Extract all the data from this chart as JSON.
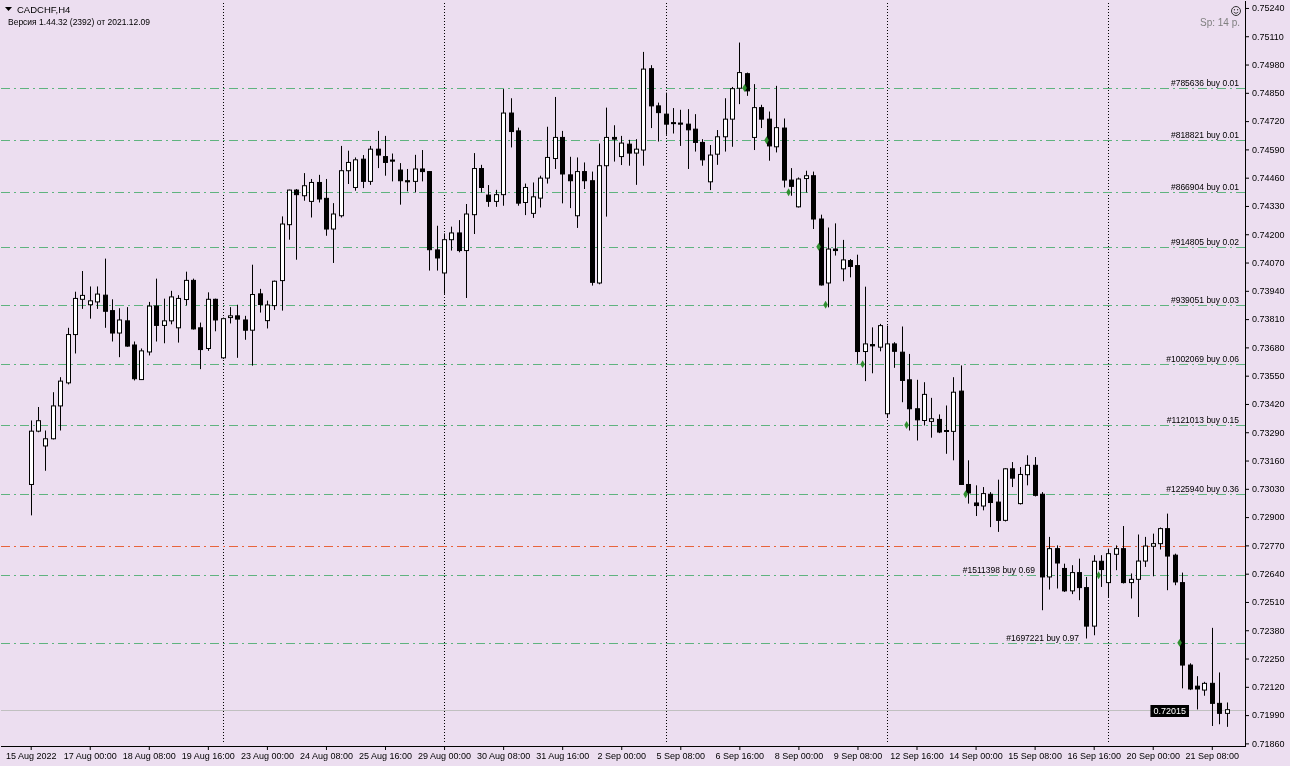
{
  "chart_data": {
    "type": "candlestick",
    "title": "CADCHF,H4",
    "subtitle": "Версия 1.44.32 (2392) от 2021.12.09",
    "annotations": [
      "Sp: 14 p."
    ],
    "categories": [
      "15 Aug 2022",
      null,
      null,
      null,
      null,
      null,
      null,
      null,
      "17 Aug 00:00",
      null,
      null,
      null,
      null,
      null,
      null,
      null,
      "18 Aug 08:00",
      null,
      null,
      null,
      null,
      null,
      null,
      null,
      "19 Aug 16:00",
      null,
      null,
      null,
      null,
      null,
      null,
      null,
      "23 Aug 00:00",
      null,
      null,
      null,
      null,
      null,
      null,
      null,
      "24 Aug 08:00",
      null,
      null,
      null,
      null,
      null,
      null,
      null,
      "25 Aug 16:00",
      null,
      null,
      null,
      null,
      null,
      null,
      null,
      "29 Aug 00:00",
      null,
      null,
      null,
      null,
      null,
      null,
      null,
      "30 Aug 08:00",
      null,
      null,
      null,
      null,
      null,
      null,
      null,
      "31 Aug 16:00",
      null,
      null,
      null,
      null,
      null,
      null,
      null,
      "2 Sep 00:00",
      null,
      null,
      null,
      null,
      null,
      null,
      null,
      "5 Sep 08:00",
      null,
      null,
      null,
      null,
      null,
      null,
      null,
      "6 Sep 16:00",
      null,
      null,
      null,
      null,
      null,
      null,
      null,
      "8 Sep 00:00",
      null,
      null,
      null,
      null,
      null,
      null,
      null,
      "9 Sep 08:00",
      null,
      null,
      null,
      null,
      null,
      null,
      null,
      "12 Sep 16:00",
      null,
      null,
      null,
      null,
      null,
      null,
      null,
      "14 Sep 00:00",
      null,
      null,
      null,
      null,
      null,
      null,
      null,
      "15 Sep 08:00",
      null,
      null,
      null,
      null,
      null,
      null,
      null,
      "16 Sep 16:00",
      null,
      null,
      null,
      null,
      null,
      null,
      null,
      "20 Sep 00:00",
      null,
      null,
      null,
      null,
      null,
      null,
      null,
      "21 Sep 08:00",
      null,
      null
    ],
    "ohlc": [
      [
        0.7305,
        0.73344,
        0.72908,
        0.73295
      ],
      [
        0.73295,
        0.73406,
        0.7329,
        0.73343
      ],
      [
        0.73227,
        0.73298,
        0.73113,
        0.7326
      ],
      [
        0.7326,
        0.73474,
        0.73257,
        0.73411
      ],
      [
        0.73411,
        0.73543,
        0.73298,
        0.73525
      ],
      [
        0.73517,
        0.7377,
        0.7351,
        0.73739
      ],
      [
        0.73739,
        0.73936,
        0.73652,
        0.73905
      ],
      [
        0.73901,
        0.74031,
        0.73857,
        0.73919
      ],
      [
        0.73876,
        0.7396,
        0.73812,
        0.73894
      ],
      [
        0.73889,
        0.7396,
        0.73857,
        0.73925
      ],
      [
        0.7392,
        0.74088,
        0.7377,
        0.73846
      ],
      [
        0.73849,
        0.73901,
        0.73707,
        0.73746
      ],
      [
        0.73746,
        0.7386,
        0.73635,
        0.73806
      ],
      [
        0.73802,
        0.73865,
        0.73683,
        0.73686
      ],
      [
        0.73691,
        0.73707,
        0.73528,
        0.73536
      ],
      [
        0.73532,
        0.73675,
        0.7353,
        0.73664
      ],
      [
        0.73659,
        0.73889,
        0.73643,
        0.7387
      ],
      [
        0.7387,
        0.73996,
        0.73707,
        0.73781
      ],
      [
        0.73781,
        0.73904,
        0.73699,
        0.73802
      ],
      [
        0.73802,
        0.7394,
        0.73786,
        0.73912
      ],
      [
        0.7377,
        0.7392,
        0.73702,
        0.73905
      ],
      [
        0.739,
        0.74028,
        0.73873,
        0.73988
      ],
      [
        0.73988,
        0.73996,
        0.73762,
        0.73765
      ],
      [
        0.7377,
        0.73794,
        0.7358,
        0.7367
      ],
      [
        0.73675,
        0.73933,
        0.73664,
        0.73901
      ],
      [
        0.73901,
        0.73904,
        0.73754,
        0.73806
      ],
      [
        0.73632,
        0.73817,
        0.73627,
        0.73812
      ],
      [
        0.73817,
        0.73865,
        0.7379,
        0.73825
      ],
      [
        0.73825,
        0.73876,
        0.73632,
        0.7381
      ],
      [
        0.73806,
        0.73825,
        0.73715,
        0.73759
      ],
      [
        0.73759,
        0.7406,
        0.73596,
        0.73923
      ],
      [
        0.73926,
        0.73949,
        0.7384,
        0.73877
      ],
      [
        0.73803,
        0.73895,
        0.73767,
        0.73875
      ],
      [
        0.73872,
        0.73987,
        0.73852,
        0.73984
      ],
      [
        0.73987,
        0.74282,
        0.73849,
        0.74247
      ],
      [
        0.74244,
        0.74405,
        0.74175,
        0.74403
      ],
      [
        0.74403,
        0.74408,
        0.74083,
        0.74382
      ],
      [
        0.74377,
        0.74481,
        0.74354,
        0.74423
      ],
      [
        0.74351,
        0.74454,
        0.74277,
        0.74438
      ],
      [
        0.74438,
        0.74473,
        0.74346,
        0.74362
      ],
      [
        0.74365,
        0.74454,
        0.74193,
        0.74224
      ],
      [
        0.74224,
        0.74343,
        0.74068,
        0.74293
      ],
      [
        0.74285,
        0.74606,
        0.74277,
        0.74492
      ],
      [
        0.74492,
        0.74584,
        0.74431,
        0.7453
      ],
      [
        0.74415,
        0.74553,
        0.744,
        0.74542
      ],
      [
        0.74545,
        0.74564,
        0.74412,
        0.74443
      ],
      [
        0.74443,
        0.74606,
        0.74427,
        0.74591
      ],
      [
        0.74591,
        0.74675,
        0.74504,
        0.74564
      ],
      [
        0.74557,
        0.74652,
        0.74469,
        0.7453
      ],
      [
        0.74541,
        0.74571,
        0.74443,
        0.74536
      ],
      [
        0.74495,
        0.74527,
        0.74336,
        0.74446
      ],
      [
        0.74446,
        0.745,
        0.74397,
        0.74441
      ],
      [
        0.74443,
        0.74565,
        0.74392,
        0.745
      ],
      [
        0.745,
        0.74587,
        0.74443,
        0.74488
      ],
      [
        0.74488,
        0.7449,
        0.74033,
        0.74129
      ],
      [
        0.74128,
        0.74239,
        0.74033,
        0.74091
      ],
      [
        0.74022,
        0.74204,
        0.73926,
        0.74175
      ],
      [
        0.74175,
        0.74235,
        0.74125,
        0.74206
      ],
      [
        0.74206,
        0.74265,
        0.74117,
        0.74125
      ],
      [
        0.74125,
        0.74339,
        0.73907,
        0.74293
      ],
      [
        0.7429,
        0.74573,
        0.74201,
        0.74502
      ],
      [
        0.74502,
        0.74519,
        0.74392,
        0.74415
      ],
      [
        0.7438,
        0.74426,
        0.74326,
        0.74351
      ],
      [
        0.74351,
        0.74404,
        0.74326,
        0.74382
      ],
      [
        0.74382,
        0.74867,
        0.74331,
        0.74757
      ],
      [
        0.74757,
        0.74825,
        0.74599,
        0.74672
      ],
      [
        0.74675,
        0.7469,
        0.74331,
        0.74343
      ],
      [
        0.74346,
        0.74433,
        0.74288,
        0.74415
      ],
      [
        0.74296,
        0.74438,
        0.74275,
        0.74372
      ],
      [
        0.74366,
        0.74469,
        0.74323,
        0.74458
      ],
      [
        0.74458,
        0.74694,
        0.74433,
        0.74553
      ],
      [
        0.74548,
        0.74831,
        0.745,
        0.74645
      ],
      [
        0.74645,
        0.74675,
        0.74342,
        0.74477
      ],
      [
        0.74473,
        0.74556,
        0.7432,
        0.74446
      ],
      [
        0.74285,
        0.74553,
        0.74229,
        0.74488
      ],
      [
        0.74488,
        0.7453,
        0.74408,
        0.74446
      ],
      [
        0.74446,
        0.74488,
        0.73964,
        0.73979
      ],
      [
        0.73976,
        0.74617,
        0.7397,
        0.74515
      ],
      [
        0.74515,
        0.74782,
        0.74281,
        0.74645
      ],
      [
        0.74645,
        0.74701,
        0.74534,
        0.74637
      ],
      [
        0.74557,
        0.74652,
        0.74518,
        0.74619
      ],
      [
        0.74614,
        0.74634,
        0.74515,
        0.74573
      ],
      [
        0.74573,
        0.74637,
        0.74427,
        0.74591
      ],
      [
        0.74587,
        0.75038,
        0.74515,
        0.74959
      ],
      [
        0.74961,
        0.74977,
        0.74688,
        0.7479
      ],
      [
        0.7479,
        0.74805,
        0.74626,
        0.74759
      ],
      [
        0.74752,
        0.74851,
        0.74657,
        0.74706
      ],
      [
        0.74713,
        0.7478,
        0.74663,
        0.74709
      ],
      [
        0.74711,
        0.74772,
        0.74606,
        0.74706
      ],
      [
        0.74706,
        0.74775,
        0.745,
        0.7468
      ],
      [
        0.74683,
        0.74752,
        0.7458,
        0.74622
      ],
      [
        0.74622,
        0.74637,
        0.74515,
        0.74542
      ],
      [
        0.74441,
        0.7461,
        0.74403,
        0.74564
      ],
      [
        0.74568,
        0.74679,
        0.74519,
        0.74648
      ],
      [
        0.74648,
        0.74825,
        0.7458,
        0.74729
      ],
      [
        0.74729,
        0.74877,
        0.74602,
        0.74869
      ],
      [
        0.74871,
        0.75081,
        0.74798,
        0.74943
      ],
      [
        0.74938,
        0.74943,
        0.74836,
        0.74859
      ],
      [
        0.74645,
        0.7489,
        0.74587,
        0.74782
      ],
      [
        0.74782,
        0.74795,
        0.74688,
        0.74729
      ],
      [
        0.74729,
        0.74764,
        0.74538,
        0.74606
      ],
      [
        0.74602,
        0.74882,
        0.74576,
        0.7469
      ],
      [
        0.74688,
        0.74732,
        0.74415,
        0.74449
      ],
      [
        0.74449,
        0.74504,
        0.74377,
        0.7442
      ],
      [
        0.74326,
        0.74461,
        0.74323,
        0.74454
      ],
      [
        0.74456,
        0.74492,
        0.74392,
        0.74469
      ],
      [
        0.74469,
        0.74488,
        0.74224,
        0.7427
      ],
      [
        0.7427,
        0.7429,
        0.73964,
        0.73967
      ],
      [
        0.73976,
        0.74231,
        0.73864,
        0.74132
      ],
      [
        0.74132,
        0.7425,
        0.74102,
        0.74125
      ],
      [
        0.74041,
        0.74174,
        0.73984,
        0.74082
      ],
      [
        0.74079,
        0.74086,
        0.74002,
        0.74052
      ],
      [
        0.74056,
        0.74106,
        0.73605,
        0.73661
      ],
      [
        0.73661,
        0.73959,
        0.73525,
        0.73696
      ],
      [
        0.73693,
        0.73772,
        0.73561,
        0.73687
      ],
      [
        0.73681,
        0.73788,
        0.73662,
        0.7378
      ],
      [
        0.73375,
        0.7378,
        0.73359,
        0.73696
      ],
      [
        0.73696,
        0.73704,
        0.73586,
        0.73662
      ],
      [
        0.73658,
        0.73776,
        0.73428,
        0.73528
      ],
      [
        0.73531,
        0.7365,
        0.73298,
        0.73398
      ],
      [
        0.73398,
        0.73531,
        0.73252,
        0.73347
      ],
      [
        0.73344,
        0.7352,
        0.73321,
        0.73464
      ],
      [
        0.7334,
        0.73448,
        0.73265,
        0.73352
      ],
      [
        0.73349,
        0.73372,
        0.73286,
        0.73291
      ],
      [
        0.73298,
        0.73413,
        0.73191,
        0.73294
      ],
      [
        0.73294,
        0.73543,
        0.73161,
        0.73474
      ],
      [
        0.73479,
        0.73597,
        0.73048,
        0.7305
      ],
      [
        0.7305,
        0.73161,
        0.72962,
        0.73011
      ],
      [
        0.72965,
        0.73046,
        0.72905,
        0.72953
      ],
      [
        0.72951,
        0.73038,
        0.72931,
        0.73008
      ],
      [
        0.73005,
        0.73015,
        0.72854,
        0.72967
      ],
      [
        0.72969,
        0.73072,
        0.72832,
        0.72885
      ],
      [
        0.72885,
        0.73125,
        0.7288,
        0.73122
      ],
      [
        0.73122,
        0.73153,
        0.73038,
        0.73079
      ],
      [
        0.72962,
        0.7313,
        0.72958,
        0.73096
      ],
      [
        0.73095,
        0.73184,
        0.73046,
        0.73138
      ],
      [
        0.73138,
        0.73176,
        0.72995,
        0.73
      ],
      [
        0.73005,
        0.73015,
        0.72472,
        0.72625
      ],
      [
        0.72625,
        0.72809,
        0.72567,
        0.72755
      ],
      [
        0.72755,
        0.7277,
        0.72572,
        0.72689
      ],
      [
        0.72664,
        0.72686,
        0.72556,
        0.72561
      ],
      [
        0.72561,
        0.72679,
        0.72546,
        0.72645
      ],
      [
        0.72645,
        0.72709,
        0.72518,
        0.72576
      ],
      [
        0.72576,
        0.72625,
        0.72342,
        0.72399
      ],
      [
        0.72399,
        0.72725,
        0.72357,
        0.72697
      ],
      [
        0.72697,
        0.72725,
        0.72579,
        0.72659
      ],
      [
        0.72599,
        0.72755,
        0.72533,
        0.72732
      ],
      [
        0.72729,
        0.7277,
        0.72656,
        0.72755
      ],
      [
        0.72755,
        0.72859,
        0.72595,
        0.72599
      ],
      [
        0.72599,
        0.72641,
        0.72526,
        0.72614
      ],
      [
        0.72614,
        0.7282,
        0.72441,
        0.72698
      ],
      [
        0.72698,
        0.72809,
        0.72671,
        0.72767
      ],
      [
        0.72766,
        0.72824,
        0.72628,
        0.72778
      ],
      [
        0.72778,
        0.72852,
        0.72751,
        0.72847
      ],
      [
        0.72847,
        0.72916,
        0.72564,
        0.72721
      ],
      [
        0.72725,
        0.72732,
        0.72587,
        0.72602
      ],
      [
        0.72599,
        0.72645,
        0.72113,
        0.7222
      ],
      [
        0.7222,
        0.72228,
        0.72105,
        0.7211
      ],
      [
        0.72123,
        0.72169,
        0.72016,
        0.7211
      ],
      [
        0.72105,
        0.72143,
        0.72079,
        0.72136
      ],
      [
        0.72136,
        0.72391,
        0.7194,
        0.72044
      ],
      [
        0.72044,
        0.72186,
        0.71948,
        0.71998
      ],
      [
        0.71998,
        0.72048,
        0.71936,
        0.72015
      ]
    ],
    "color": "#000000",
    "colors": [
      "#ffffff",
      "#ffffff",
      "#ffffff",
      "#ffffff",
      "#ffffff",
      "#ffffff",
      "#ffffff",
      "#ffffff",
      "#ffffff",
      "#ffffff",
      "#000000",
      "#000000",
      "#ffffff",
      "#000000",
      "#000000",
      "#ffffff",
      "#ffffff",
      "#000000",
      "#ffffff",
      "#ffffff",
      "#ffffff",
      "#ffffff",
      "#000000",
      "#000000",
      "#ffffff",
      "#000000",
      "#ffffff",
      "#ffffff",
      "#000000",
      "#000000",
      "#ffffff",
      "#000000",
      "#ffffff",
      "#ffffff",
      "#ffffff",
      "#ffffff",
      "#000000",
      "#ffffff",
      "#ffffff",
      "#000000",
      "#000000",
      "#ffffff",
      "#ffffff",
      "#ffffff",
      "#ffffff",
      "#000000",
      "#ffffff",
      "#000000",
      "#000000",
      "#000000",
      "#000000",
      "#000000",
      "#ffffff",
      "#000000",
      "#000000",
      "#000000",
      "#ffffff",
      "#ffffff",
      "#000000",
      "#ffffff",
      "#ffffff",
      "#000000",
      "#000000",
      "#ffffff",
      "#ffffff",
      "#000000",
      "#000000",
      "#ffffff",
      "#ffffff",
      "#ffffff",
      "#ffffff",
      "#ffffff",
      "#000000",
      "#000000",
      "#ffffff",
      "#000000",
      "#000000",
      "#ffffff",
      "#ffffff",
      "#000000",
      "#ffffff",
      "#000000",
      "#ffffff",
      "#ffffff",
      "#000000",
      "#000000",
      "#000000",
      "#000000",
      "#000000",
      "#000000",
      "#000000",
      "#000000",
      "#ffffff",
      "#ffffff",
      "#ffffff",
      "#ffffff",
      "#ffffff",
      "#000000",
      "#ffffff",
      "#000000",
      "#000000",
      "#ffffff",
      "#000000",
      "#000000",
      "#ffffff",
      "#ffffff",
      "#000000",
      "#000000",
      "#ffffff",
      "#000000",
      "#ffffff",
      "#000000",
      "#000000",
      "#ffffff",
      "#000000",
      "#ffffff",
      "#ffffff",
      "#000000",
      "#000000",
      "#000000",
      "#000000",
      "#ffffff",
      "#ffffff",
      "#000000",
      "#000000",
      "#ffffff",
      "#000000",
      "#000000",
      "#000000",
      "#ffffff",
      "#000000",
      "#000000",
      "#ffffff",
      "#000000",
      "#ffffff",
      "#ffffff",
      "#000000",
      "#000000",
      "#ffffff",
      "#000000",
      "#000000",
      "#ffffff",
      "#000000",
      "#000000",
      "#ffffff",
      "#000000",
      "#ffffff",
      "#ffffff",
      "#000000",
      "#ffffff",
      "#ffffff",
      "#ffffff",
      "#ffffff",
      "#ffffff",
      "#000000",
      "#000000",
      "#000000",
      "#000000",
      "#000000",
      "#ffffff",
      "#000000",
      "#000000",
      "#ffffff"
    ],
    "series": [
      {
        "type": "scatter",
        "color": "#2f8f2f",
        "marker": "diamond",
        "values": [
          null,
          null,
          null,
          null,
          null,
          null,
          null,
          null,
          null,
          null,
          null,
          null,
          null,
          null,
          null,
          null,
          null,
          null,
          null,
          null,
          null,
          null,
          null,
          null,
          null,
          null,
          null,
          null,
          null,
          null,
          null,
          null,
          null,
          null,
          null,
          null,
          null,
          null,
          null,
          null,
          null,
          null,
          null,
          null,
          null,
          null,
          null,
          null,
          null,
          null,
          null,
          null,
          null,
          null,
          null,
          null,
          null,
          null,
          null,
          null,
          null,
          null,
          null,
          null,
          null,
          null,
          null,
          null,
          null,
          null,
          null,
          null,
          null,
          null,
          null,
          null,
          null,
          null,
          null,
          null,
          null,
          null,
          null,
          null,
          null,
          null,
          null,
          null,
          null,
          null,
          null,
          null,
          null,
          null,
          null,
          null,
          null,
          0.74872,
          null,
          null,
          0.74632,
          null,
          null,
          0.74393,
          null,
          null,
          null,
          0.74142,
          0.73876,
          null,
          null,
          null,
          null,
          0.73603,
          null,
          null,
          null,
          null,
          null,
          0.73323,
          null,
          null,
          null,
          null,
          null,
          null,
          null,
          0.73005,
          null,
          null,
          null,
          null,
          null,
          null,
          null,
          null,
          null,
          null,
          null,
          null,
          null,
          null,
          null,
          null,
          null,
          0.72633,
          null,
          null,
          null,
          null,
          null,
          null,
          null,
          null,
          null,
          null,
          0.72322,
          null,
          null,
          null,
          null,
          null,
          null
        ]
      }
    ],
    "ylim": [
      0.71848,
      0.75272
    ],
    "yticks": [
      {
        "value": 0.7186,
        "label": "0.71860"
      },
      {
        "value": 0.7199,
        "label": "0.71990"
      },
      {
        "value": 0.7212,
        "label": "0.72120"
      },
      {
        "value": 0.7225,
        "label": "0.72250"
      },
      {
        "value": 0.7238,
        "label": "0.72380"
      },
      {
        "value": 0.7251,
        "label": "0.72510"
      },
      {
        "value": 0.7264,
        "label": "0.72640"
      },
      {
        "value": 0.7277,
        "label": "0.72770"
      },
      {
        "value": 0.729,
        "label": "0.72900"
      },
      {
        "value": 0.7303,
        "label": "0.73030"
      },
      {
        "value": 0.7316,
        "label": "0.73160"
      },
      {
        "value": 0.7329,
        "label": "0.73290"
      },
      {
        "value": 0.7342,
        "label": "0.73420"
      },
      {
        "value": 0.7355,
        "label": "0.73550"
      },
      {
        "value": 0.7368,
        "label": "0.73680"
      },
      {
        "value": 0.7381,
        "label": "0.73810"
      },
      {
        "value": 0.7394,
        "label": "0.73940"
      },
      {
        "value": 0.7407,
        "label": "0.74070"
      },
      {
        "value": 0.742,
        "label": "0.74200"
      },
      {
        "value": 0.7433,
        "label": "0.74330"
      },
      {
        "value": 0.7446,
        "label": "0.74460"
      },
      {
        "value": 0.7459,
        "label": "0.74590"
      },
      {
        "value": 0.7472,
        "label": "0.74720"
      },
      {
        "value": 0.7485,
        "label": "0.74850"
      },
      {
        "value": 0.7498,
        "label": "0.74980"
      },
      {
        "value": 0.7511,
        "label": "0.75110"
      },
      {
        "value": 0.7524,
        "label": "0.75240"
      }
    ],
    "ref_lines": [
      {
        "axis": "y",
        "value": 0.74872,
        "label": "#785636 buy 0.01",
        "color": "#5fb37f",
        "line_style": "dashed"
      },
      {
        "axis": "y",
        "value": 0.74632,
        "label": "#818821 buy 0.01",
        "color": "#5fb37f",
        "line_style": "dashed"
      },
      {
        "axis": "y",
        "value": 0.74393,
        "label": "#866904 buy 0.01",
        "color": "#5fb37f",
        "line_style": "dashed"
      },
      {
        "axis": "y",
        "value": 0.74142,
        "label": "#914805 buy 0.02",
        "color": "#5fb37f",
        "line_style": "dashed"
      },
      {
        "axis": "y",
        "value": 0.73876,
        "label": "#939051 buy 0.03",
        "color": "#5fb37f",
        "line_style": "dashed"
      },
      {
        "axis": "y",
        "value": 0.73603,
        "label": "#1002069 buy 0.06",
        "color": "#5fb37f",
        "line_style": "dashed"
      },
      {
        "axis": "y",
        "value": 0.73323,
        "label": "#1121013 buy 0.15",
        "color": "#5fb37f",
        "line_style": "dashed"
      },
      {
        "axis": "y",
        "value": 0.73005,
        "label": "#1225940 buy 0.36",
        "color": "#5fb37f",
        "line_style": "dashed"
      },
      {
        "axis": "y",
        "value": 0.72766,
        "color": "#e8643c",
        "line_style": "dashed"
      },
      {
        "axis": "y",
        "value": 0.72633,
        "label": "#1511398 buy 0.69",
        "color": "#5fb37f",
        "line_style": "dashed"
      },
      {
        "axis": "y",
        "value": 0.72322,
        "label": "#1697221 buy 0.97",
        "color": "#5fb37f",
        "line_style": "dashed"
      },
      {
        "axis": "y",
        "value": 0.72015,
        "label": "0.72015",
        "color": "#c0c0c0",
        "line_style": "solid"
      }
    ]
  }
}
